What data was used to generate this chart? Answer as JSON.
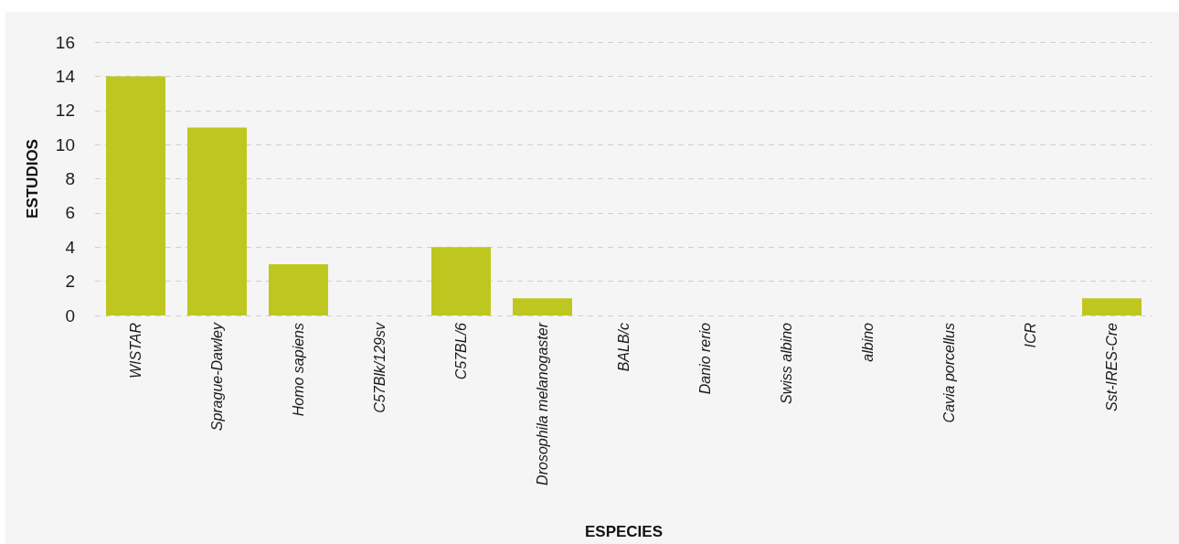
{
  "chart_data": {
    "type": "bar",
    "xlabel": "ESPECIES",
    "ylabel": "ESTUDIOS",
    "categories": [
      "WISTAR",
      "Sprague-Dawley",
      "Homo sapiens",
      "C57Blk/129sv",
      "C57BL/6",
      "Drosophila melanogaster",
      "BALB/c",
      "Danio rerio",
      "Swiss albino",
      "albino",
      "Cavia porcellus",
      "ICR",
      "Sst-IRES-Cre"
    ],
    "values": [
      14,
      11,
      3,
      0,
      4,
      1,
      0,
      0,
      0,
      0,
      0,
      0,
      1
    ],
    "color": "#bec71f",
    "ylim": [
      0,
      16
    ],
    "yticks": [
      0,
      2,
      4,
      6,
      8,
      10,
      12,
      14,
      16
    ],
    "grid": "y"
  }
}
